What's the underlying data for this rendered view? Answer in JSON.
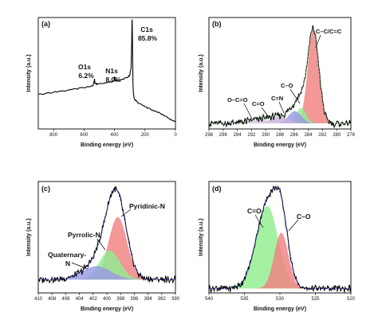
{
  "chart_data": [
    {
      "panel": "(a)",
      "type": "line",
      "xlabel": "Binding energy (eV)",
      "ylabel": "Intensity (a.u.)",
      "xlim": [
        900,
        0
      ],
      "ylim": [
        0,
        1
      ],
      "x_ticks": [
        800,
        600,
        400,
        200,
        0
      ],
      "peaks": [
        {
          "name": "O1s",
          "percent": "6.2%",
          "be": 532
        },
        {
          "name": "N1s",
          "percent": "8.0%",
          "be": 399
        },
        {
          "name": "C1s",
          "percent": "85.8%",
          "be": 284
        }
      ],
      "survey": {
        "x": [
          900,
          850,
          800,
          750,
          700,
          650,
          600,
          560,
          540,
          534,
          531,
          528,
          510,
          470,
          430,
          405,
          400,
          397,
          392,
          360,
          320,
          300,
          291,
          287,
          285,
          284,
          282,
          279,
          276,
          270,
          240,
          200,
          150,
          100,
          50,
          25,
          0
        ],
        "y": [
          0.31,
          0.32,
          0.33,
          0.34,
          0.35,
          0.36,
          0.37,
          0.38,
          0.39,
          0.42,
          0.45,
          0.41,
          0.4,
          0.41,
          0.42,
          0.43,
          0.47,
          0.44,
          0.43,
          0.44,
          0.46,
          0.48,
          0.55,
          0.78,
          0.96,
          0.98,
          0.8,
          0.42,
          0.32,
          0.27,
          0.23,
          0.2,
          0.17,
          0.14,
          0.1,
          0.08,
          0.07
        ]
      }
    },
    {
      "panel": "(b)",
      "type": "line",
      "xlabel": "Binding energy (eV)",
      "ylabel": "Intensity (a.u.)",
      "xlim": [
        298,
        278
      ],
      "ylim": [
        0,
        1
      ],
      "x_ticks": [
        298,
        296,
        294,
        292,
        290,
        288,
        286,
        284,
        282,
        280,
        278
      ],
      "baseline": 0.05,
      "components": [
        {
          "name": "C–C/C=C",
          "center": 283.3,
          "amp": 0.84,
          "width": 0.78,
          "color": "#f08080"
        },
        {
          "name": "C–O",
          "center": 285.0,
          "amp": 0.14,
          "width": 0.7,
          "color": "#90ee90"
        },
        {
          "name": "C=N",
          "center": 285.9,
          "amp": 0.11,
          "width": 0.9,
          "color": "#9a9ae6"
        },
        {
          "name": "C=O",
          "center": 288.0,
          "amp": 0.06,
          "width": 1.3,
          "color": "#c7b2d8"
        },
        {
          "name": "O–C=O",
          "center": 291.0,
          "amp": 0.035,
          "width": 1.6,
          "color": "#d8c8e0"
        }
      ]
    },
    {
      "panel": "(c)",
      "type": "line",
      "xlabel": "Binding energy (eV)",
      "ylabel": "Intensity (a.u.)",
      "xlim": [
        410,
        390
      ],
      "ylim": [
        0,
        1
      ],
      "x_ticks": [
        410,
        408,
        406,
        404,
        402,
        400,
        398,
        396,
        394,
        392,
        390
      ],
      "baseline": 0.12,
      "components": [
        {
          "name": "Pyridinic-N",
          "center": 398.4,
          "amp": 0.56,
          "width": 1.35,
          "color": "#f08080"
        },
        {
          "name": "Pyrrolic-N",
          "center": 399.6,
          "amp": 0.26,
          "width": 1.5,
          "color": "#90ee90"
        },
        {
          "name": "Quaternary-N",
          "center": 401.5,
          "amp": 0.12,
          "width": 2.1,
          "color": "#9a9ae6"
        }
      ]
    },
    {
      "panel": "(d)",
      "type": "line",
      "xlabel": "Binding energy (eV)",
      "ylabel": "Intensity (a.u.)",
      "xlim": [
        540,
        520
      ],
      "ylim": [
        0,
        1
      ],
      "x_ticks": [
        540,
        535,
        530,
        525,
        520
      ],
      "baseline": 0.04,
      "components": [
        {
          "name": "C=O",
          "center": 531.8,
          "amp": 0.74,
          "width": 1.55,
          "color": "#90ee90"
        },
        {
          "name": "C–O",
          "center": 529.8,
          "amp": 0.5,
          "width": 1.0,
          "color": "#f08080"
        }
      ]
    }
  ],
  "labels": {
    "a": {
      "panel": "(a)",
      "o1s_name": "O1s",
      "o1s_pct": "6.2%",
      "n1s_name": "N1s",
      "n1s_pct": "8.0%",
      "c1s_name": "C1s",
      "c1s_pct": "85.8%"
    },
    "b": {
      "panel": "(b)",
      "cc": "C–C/C=C",
      "co": "C–O",
      "cn": "C=N",
      "ceqo": "C=O",
      "oco": "O–C=O"
    },
    "c": {
      "panel": "(c)",
      "pyridinic": "Pyridinic-N",
      "pyrrolic": "Pyrrolic-N",
      "quaternary1": "Quaternary-",
      "quaternary2": "N"
    },
    "d": {
      "panel": "(d)",
      "ceqo": "C=O",
      "co": "C–O"
    },
    "xlabel": "Binding energy (eV)",
    "ylabel": "Intensity (a.u.)"
  }
}
